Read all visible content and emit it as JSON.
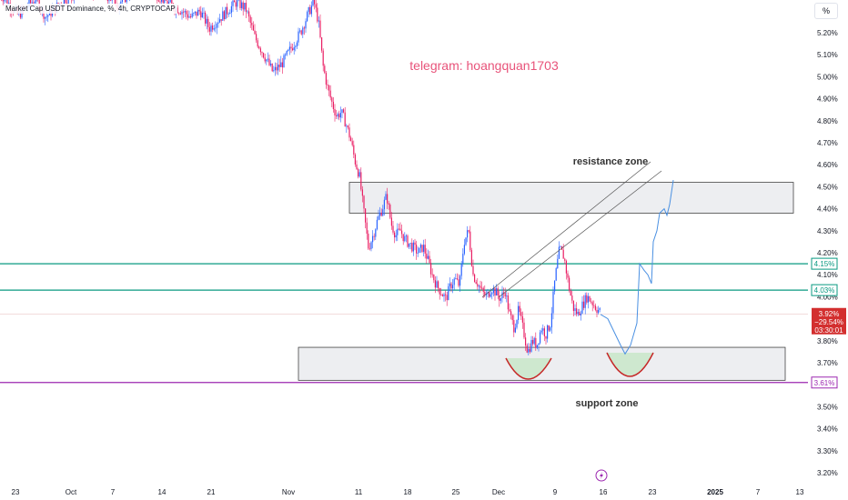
{
  "header": {
    "title": "Market Cap USDT Dominance, %, 4h, CRYPTOCAP"
  },
  "toolbar": {
    "percent_button": "%"
  },
  "chart_data": {
    "type": "candlestick",
    "title": "Market Cap USDT Dominance, %, 4h, CRYPTOCAP",
    "y_unit": "%",
    "ylim": [
      3.16,
      5.34
    ],
    "y_ticks": [
      "5.20%",
      "5.10%",
      "5.00%",
      "4.90%",
      "4.80%",
      "4.70%",
      "4.60%",
      "4.50%",
      "4.40%",
      "4.30%",
      "4.20%",
      "4.10%",
      "4.00%",
      "3.80%",
      "3.70%",
      "3.60%",
      "3.50%",
      "3.40%",
      "3.30%",
      "3.20%"
    ],
    "x_ticks": [
      {
        "label": "23",
        "bold": false
      },
      {
        "label": "Oct",
        "bold": false
      },
      {
        "label": "7",
        "bold": false
      },
      {
        "label": "14",
        "bold": false
      },
      {
        "label": "21",
        "bold": false
      },
      {
        "label": "Nov",
        "bold": false
      },
      {
        "label": "11",
        "bold": false
      },
      {
        "label": "18",
        "bold": false
      },
      {
        "label": "25",
        "bold": false
      },
      {
        "label": "Dec",
        "bold": false
      },
      {
        "label": "9",
        "bold": false
      },
      {
        "label": "16",
        "bold": false
      },
      {
        "label": "23",
        "bold": false
      },
      {
        "label": "2025",
        "bold": true
      },
      {
        "label": "7",
        "bold": false
      },
      {
        "label": "13",
        "bold": false
      }
    ],
    "price_path": [
      [
        0,
        5.38
      ],
      [
        10,
        5.33
      ],
      [
        20,
        5.28
      ],
      [
        30,
        5.32
      ],
      [
        40,
        5.36
      ],
      [
        50,
        5.27
      ],
      [
        60,
        5.31
      ],
      [
        70,
        5.35
      ],
      [
        80,
        5.37
      ],
      [
        90,
        5.4
      ],
      [
        100,
        5.38
      ],
      [
        110,
        5.39
      ],
      [
        120,
        5.36
      ],
      [
        130,
        5.33
      ],
      [
        140,
        5.37
      ],
      [
        150,
        5.42
      ],
      [
        160,
        5.39
      ],
      [
        170,
        5.38
      ],
      [
        180,
        5.35
      ],
      [
        190,
        5.32
      ],
      [
        200,
        5.3
      ],
      [
        210,
        5.27
      ],
      [
        220,
        5.3
      ],
      [
        230,
        5.22
      ],
      [
        240,
        5.26
      ],
      [
        250,
        5.3
      ],
      [
        260,
        5.34
      ],
      [
        270,
        5.31
      ],
      [
        280,
        5.18
      ],
      [
        290,
        5.1
      ],
      [
        300,
        5.02
      ],
      [
        310,
        5.06
      ],
      [
        320,
        5.13
      ],
      [
        330,
        5.2
      ],
      [
        340,
        5.3
      ],
      [
        345,
        5.34
      ],
      [
        350,
        5.25
      ],
      [
        355,
        5.05
      ],
      [
        360,
        4.95
      ],
      [
        365,
        4.88
      ],
      [
        370,
        4.82
      ],
      [
        375,
        4.84
      ],
      [
        380,
        4.79
      ],
      [
        385,
        4.72
      ],
      [
        390,
        4.62
      ],
      [
        395,
        4.55
      ],
      [
        400,
        4.38
      ],
      [
        405,
        4.22
      ],
      [
        410,
        4.28
      ],
      [
        415,
        4.35
      ],
      [
        420,
        4.4
      ],
      [
        425,
        4.46
      ],
      [
        430,
        4.33
      ],
      [
        435,
        4.28
      ],
      [
        440,
        4.3
      ],
      [
        445,
        4.26
      ],
      [
        450,
        4.24
      ],
      [
        455,
        4.22
      ],
      [
        460,
        4.2
      ],
      [
        465,
        4.23
      ],
      [
        470,
        4.17
      ],
      [
        475,
        4.1
      ],
      [
        480,
        4.05
      ],
      [
        485,
        4.02
      ],
      [
        490,
        3.99
      ],
      [
        495,
        4.05
      ],
      [
        500,
        4.08
      ],
      [
        505,
        4.05
      ],
      [
        510,
        4.25
      ],
      [
        515,
        4.3
      ],
      [
        520,
        4.1
      ],
      [
        525,
        4.06
      ],
      [
        530,
        4.02
      ],
      [
        535,
        4.0
      ],
      [
        540,
        4.04
      ],
      [
        545,
        4.02
      ],
      [
        550,
        3.99
      ],
      [
        555,
        4.03
      ],
      [
        560,
        3.92
      ],
      [
        565,
        3.86
      ],
      [
        570,
        3.94
      ],
      [
        575,
        3.85
      ],
      [
        580,
        3.75
      ],
      [
        585,
        3.8
      ],
      [
        590,
        3.78
      ],
      [
        595,
        3.86
      ],
      [
        600,
        3.83
      ],
      [
        605,
        3.88
      ],
      [
        610,
        4.08
      ],
      [
        615,
        4.22
      ],
      [
        620,
        4.18
      ],
      [
        625,
        4.05
      ],
      [
        630,
        3.95
      ],
      [
        635,
        3.92
      ],
      [
        640,
        3.96
      ],
      [
        645,
        4.0
      ],
      [
        650,
        3.98
      ],
      [
        655,
        3.95
      ],
      [
        660,
        3.93
      ]
    ],
    "projection_path": [
      [
        660,
        3.92
      ],
      [
        668,
        3.9
      ],
      [
        675,
        3.84
      ],
      [
        682,
        3.78
      ],
      [
        687,
        3.74
      ],
      [
        693,
        3.78
      ],
      [
        700,
        3.88
      ],
      [
        703,
        4.15
      ],
      [
        708,
        4.12
      ],
      [
        712,
        4.1
      ],
      [
        716,
        4.06
      ],
      [
        718,
        4.25
      ],
      [
        722,
        4.3
      ],
      [
        725,
        4.38
      ],
      [
        730,
        4.4
      ],
      [
        733,
        4.37
      ],
      [
        736,
        4.42
      ],
      [
        740,
        4.53
      ]
    ],
    "horizontal_levels": [
      {
        "value": 4.15,
        "label": "4.15%",
        "color": "#089981"
      },
      {
        "value": 4.03,
        "label": "4.03%",
        "color": "#089981"
      },
      {
        "value": 3.61,
        "label": "3.61%",
        "color": "#9c27b0"
      }
    ],
    "current_price": {
      "value": 3.92,
      "label": "3.92%",
      "change": "−29.54%",
      "countdown": "03:30:01",
      "color": "#d32f2f"
    },
    "zones": [
      {
        "name": "resistance zone",
        "from": 4.38,
        "to": 4.52
      },
      {
        "name": "support zone",
        "from": 3.62,
        "to": 3.77
      }
    ],
    "annotations": {
      "telegram": "telegram: hoangquan1703",
      "resistance": "resistance zone",
      "support": "support zone"
    },
    "colors": {
      "up": "#2962ff",
      "down": "#e91e63",
      "projection": "#4a90e2",
      "telegram_text": "#e8537a",
      "cup_green": "#c8e6c9",
      "cup_red": "#c62828"
    },
    "grid": false
  }
}
